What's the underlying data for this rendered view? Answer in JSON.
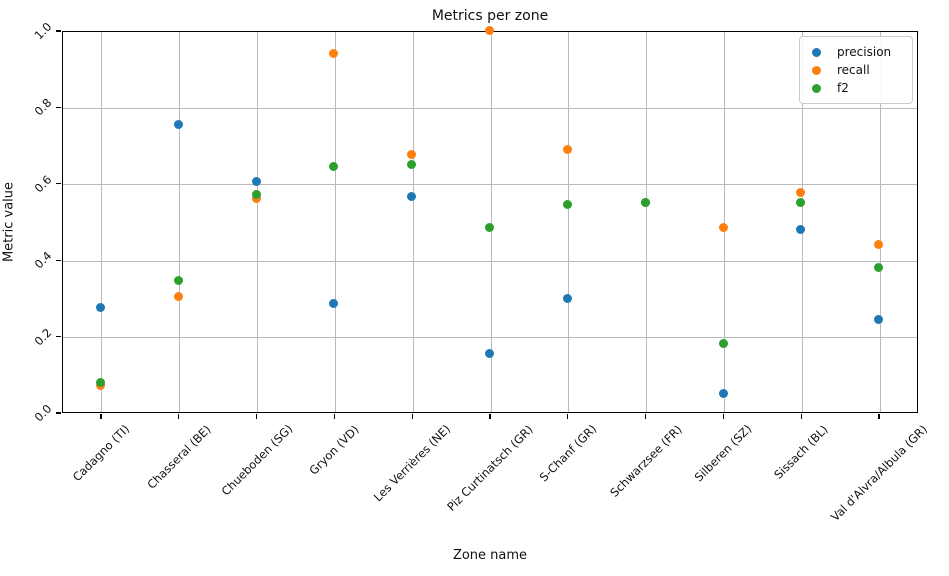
{
  "figure": {
    "title": "Metrics per zone",
    "xlabel": "Zone name",
    "ylabel": "Metric value"
  },
  "chart_data": {
    "type": "scatter",
    "title": "Metrics per zone",
    "xlabel": "Zone name",
    "ylabel": "Metric value",
    "ylim": [
      0.0,
      1.0
    ],
    "yticks": [
      "0.0",
      "0.2",
      "0.4",
      "0.6",
      "0.8",
      "1.0"
    ],
    "grid": true,
    "legend_position": "upper right",
    "tick_label_rotation_deg": 45,
    "grid_color": "#bababa",
    "categories": [
      "Cadagno (TI)",
      "Chasseral (BE)",
      "Chueboden (SG)",
      "Gryon (VD)",
      "Les Verrières (NE)",
      "Piz Curtinatsch (GR)",
      "S-Chanf (GR)",
      "Schwarzsee (FR)",
      "Silberen (SZ)",
      "Sissach (BL)",
      "Val d'Alvra/Albula (GR)"
    ],
    "series": [
      {
        "name": "precision",
        "color": "#1f77b4",
        "values": [
          0.275,
          0.755,
          0.605,
          0.285,
          0.565,
          0.155,
          0.3,
          0.55,
          0.05,
          0.48,
          0.245
        ]
      },
      {
        "name": "recall",
        "color": "#ff7f0e",
        "values": [
          0.07,
          0.305,
          0.56,
          0.94,
          0.675,
          1.0,
          0.69,
          0.55,
          0.485,
          0.575,
          0.44
        ]
      },
      {
        "name": "f2",
        "color": "#2ca02c",
        "values": [
          0.08,
          0.345,
          0.57,
          0.645,
          0.65,
          0.485,
          0.545,
          0.55,
          0.18,
          0.55,
          0.38
        ]
      }
    ]
  }
}
